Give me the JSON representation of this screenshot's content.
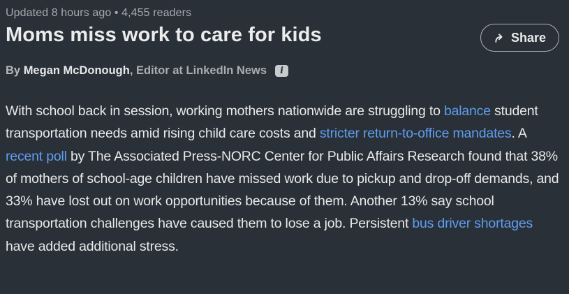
{
  "theme": {
    "background": "#293037",
    "text_primary": "#e8e9ea",
    "text_secondary": "#a4a9ae",
    "link_color": "#5f9df0",
    "button_border": "#aeb2b6"
  },
  "header": {
    "meta": "Updated 8 hours ago • 4,455 readers",
    "title": "Moms miss work to care for kids",
    "share_label": "Share",
    "share_icon": "share-arrow-icon"
  },
  "byline": {
    "prefix": "By ",
    "author": "Megan McDonough",
    "role": ", Editor at LinkedIn News",
    "info_icon": "info-icon",
    "info_glyph": "i"
  },
  "article": {
    "segments": [
      {
        "text": "With school back in session, working mothers nationwide are struggling to ",
        "link": false
      },
      {
        "text": "balance",
        "link": true
      },
      {
        "text": " student transportation needs amid rising child care costs and ",
        "link": false
      },
      {
        "text": "stricter return-to-office mandates",
        "link": true
      },
      {
        "text": ". A ",
        "link": false
      },
      {
        "text": "recent poll",
        "link": true
      },
      {
        "text": " by The Associated Press-NORC Center for Public Affairs Research found that 38% of mothers of school-age children have missed work due to pickup and drop-off demands, and 33% have lost out on work opportunities because of them. Another 13% say school transportation challenges have caused them to lose a job. Persistent ",
        "link": false
      },
      {
        "text": "bus driver shortages",
        "link": true
      },
      {
        "text": " have added additional stress.",
        "link": false
      }
    ]
  }
}
